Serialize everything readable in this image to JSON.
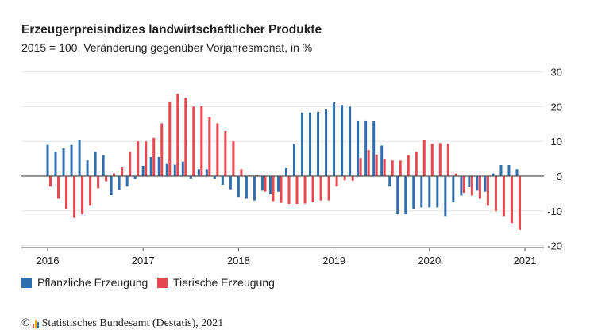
{
  "chart_data": {
    "type": "bar",
    "title": "Erzeugerpreisindizes landwirtschaftlicher Produkte",
    "subtitle": "2015 = 100, Veränderung gegenüber Vorjahresmonat, in %",
    "x_tick_labels": [
      "2016",
      "2017",
      "2018",
      "2019",
      "2020",
      "2021"
    ],
    "y_tick_labels": [
      "30",
      "20",
      "10",
      "0",
      "-10",
      "-20"
    ],
    "ylim": [
      -20,
      30
    ],
    "grid": true,
    "legend_position": "bottom-left",
    "x_start": "2016-01",
    "x_end": "2020-12",
    "series": [
      {
        "name": "Pflanzliche Erzeugung",
        "color": "#2f6fb0",
        "values": [
          9.0,
          7.0,
          8.0,
          9.0,
          10.5,
          4.5,
          7.0,
          6.0,
          -5.5,
          -4.0,
          -3.0,
          -0.8,
          3.0,
          5.5,
          5.5,
          3.5,
          3.3,
          4.2,
          -0.7,
          2.0,
          2.0,
          -0.7,
          -2.5,
          -3.8,
          -6.0,
          -6.5,
          -7.0,
          -4.2,
          -5.2,
          -4.5,
          2.3,
          9.2,
          18.3,
          18.3,
          18.5,
          19.2,
          21.3,
          20.5,
          20.0,
          16.0,
          16.0,
          15.8,
          8.8,
          -3.0,
          -11.0,
          -11.0,
          -9.5,
          -9.0,
          -9.0,
          -9.0,
          -11.5,
          -7.5,
          -5.6,
          -3.2,
          -4.2,
          -4.5,
          0.8,
          3.2,
          3.2,
          2.0
        ]
      },
      {
        "name": "Tierische Erzeugung",
        "color": "#e8474f",
        "values": [
          -3.0,
          -6.5,
          -9.5,
          -12.0,
          -11.0,
          -8.5,
          -3.5,
          -1.5,
          0.8,
          2.5,
          7.0,
          10.0,
          10.0,
          11.0,
          15.2,
          21.5,
          23.7,
          22.5,
          20.0,
          20.2,
          17.0,
          15.2,
          13.0,
          10.0,
          2.0,
          0.3,
          0.3,
          -4.5,
          -7.2,
          -7.7,
          -8.0,
          -8.0,
          -7.9,
          -7.5,
          -7.0,
          -7.0,
          -3.0,
          -1.2,
          -1.3,
          5.2,
          7.5,
          6.2,
          5.0,
          4.5,
          4.5,
          6.0,
          7.0,
          10.5,
          9.3,
          9.5,
          9.3,
          0.8,
          -4.8,
          -5.6,
          -6.5,
          -8.5,
          -10.0,
          -11.5,
          -13.5,
          -15.5
        ]
      }
    ]
  },
  "source": "Statistisches Bundesamt (Destatis), 2021",
  "copyright": "©"
}
